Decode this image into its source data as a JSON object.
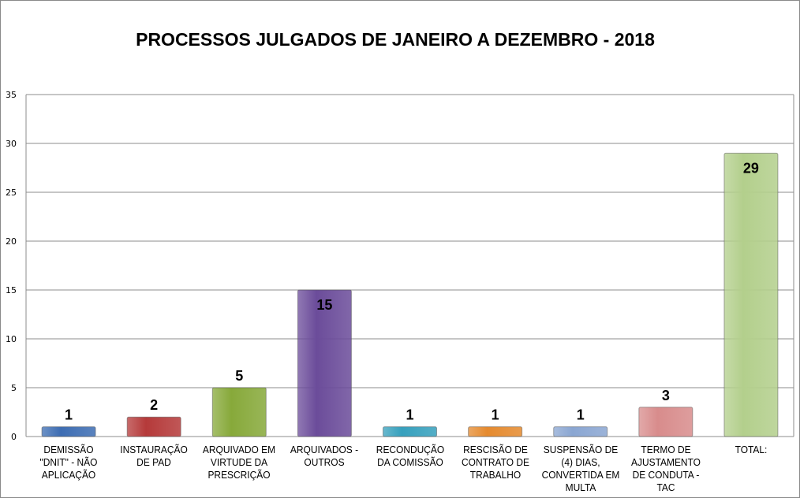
{
  "chart_data": {
    "type": "bar",
    "title": "PROCESSOS JULGADOS DE JANEIRO A DEZEMBRO - 2018",
    "categories": [
      "DEMISSÃO \"DNIT\" - NÃO APLICAÇÃO",
      "INSTAURAÇÃO DE PAD",
      "ARQUIVADO EM VIRTUDE DA PRESCRIÇÃO",
      "ARQUIVADOS - OUTROS",
      "RECONDUÇÃO DA COMISSÃO",
      "RESCISÃO DE CONTRATO DE TRABALHO",
      "SUSPENSÃO DE (4) DIAS, CONVERTIDA EM MULTA",
      "TERMO DE AJUSTAMENTO DE CONDUTA - TAC",
      "TOTAL:"
    ],
    "values": [
      1,
      2,
      5,
      15,
      1,
      1,
      1,
      3,
      29
    ],
    "colors": [
      "#3d6db3",
      "#b53a3a",
      "#87a93a",
      "#6b4c9a",
      "#36a0bd",
      "#e58a2e",
      "#8aa6d2",
      "#d88c8c",
      "#b3cf8c"
    ],
    "ylim": [
      0,
      35
    ],
    "yticks": [
      0,
      5,
      10,
      15,
      20,
      25,
      30,
      35
    ],
    "grid": true,
    "legend": "none"
  }
}
